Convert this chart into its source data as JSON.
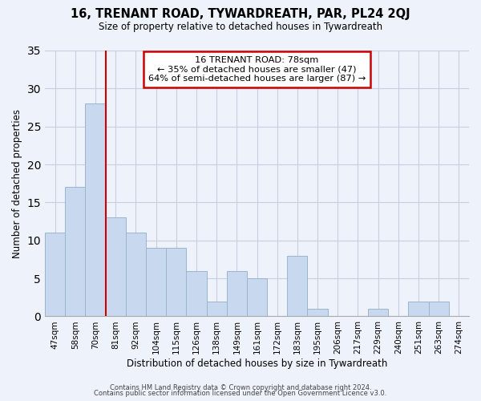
{
  "title": "16, TRENANT ROAD, TYWARDREATH, PAR, PL24 2QJ",
  "subtitle": "Size of property relative to detached houses in Tywardreath",
  "xlabel": "Distribution of detached houses by size in Tywardreath",
  "ylabel": "Number of detached properties",
  "bar_labels": [
    "47sqm",
    "58sqm",
    "70sqm",
    "81sqm",
    "92sqm",
    "104sqm",
    "115sqm",
    "126sqm",
    "138sqm",
    "149sqm",
    "161sqm",
    "172sqm",
    "183sqm",
    "195sqm",
    "206sqm",
    "217sqm",
    "229sqm",
    "240sqm",
    "251sqm",
    "263sqm",
    "274sqm"
  ],
  "bar_values": [
    11,
    17,
    28,
    13,
    11,
    9,
    9,
    6,
    2,
    6,
    5,
    0,
    8,
    1,
    0,
    0,
    1,
    0,
    2,
    2,
    0
  ],
  "bar_color": "#c8d8ee",
  "bar_edge_color": "#9ab4d2",
  "grid_color": "#c8cfe0",
  "background_color": "#eef2fa",
  "plot_bg_color": "#eef2fa",
  "vline_x_index": 3,
  "vline_color": "#cc0000",
  "annotation_title": "16 TRENANT ROAD: 78sqm",
  "annotation_line1": "← 35% of detached houses are smaller (47)",
  "annotation_line2": "64% of semi-detached houses are larger (87) →",
  "annotation_box_color": "#ffffff",
  "annotation_border_color": "#cc0000",
  "ylim": [
    0,
    35
  ],
  "yticks": [
    0,
    5,
    10,
    15,
    20,
    25,
    30,
    35
  ],
  "footer1": "Contains HM Land Registry data © Crown copyright and database right 2024.",
  "footer2": "Contains public sector information licensed under the Open Government Licence v3.0."
}
